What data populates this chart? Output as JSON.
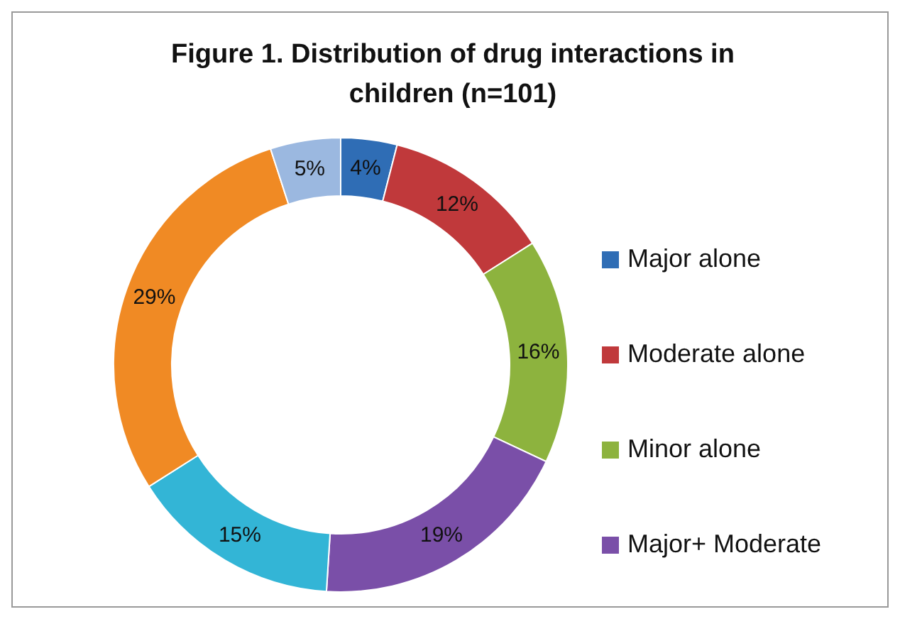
{
  "chart_data": {
    "type": "donut",
    "title": "Figure 1. Distribution of drug interactions in children (n=101)",
    "categories": [
      "Major alone",
      "Moderate alone",
      "Minor alone",
      "Major+ Moderate",
      null,
      null,
      null
    ],
    "values": [
      4,
      12,
      16,
      19,
      15,
      29,
      5
    ],
    "colors": [
      "#2f6db5",
      "#c0393b",
      "#8db33e",
      "#7a4fa8",
      "#33b5d6",
      "#f08a24",
      "#9bb8e0"
    ],
    "value_labels": [
      "4%",
      "12%",
      "16%",
      "19%",
      "15%",
      "29%",
      "5%"
    ],
    "legend": "right"
  }
}
